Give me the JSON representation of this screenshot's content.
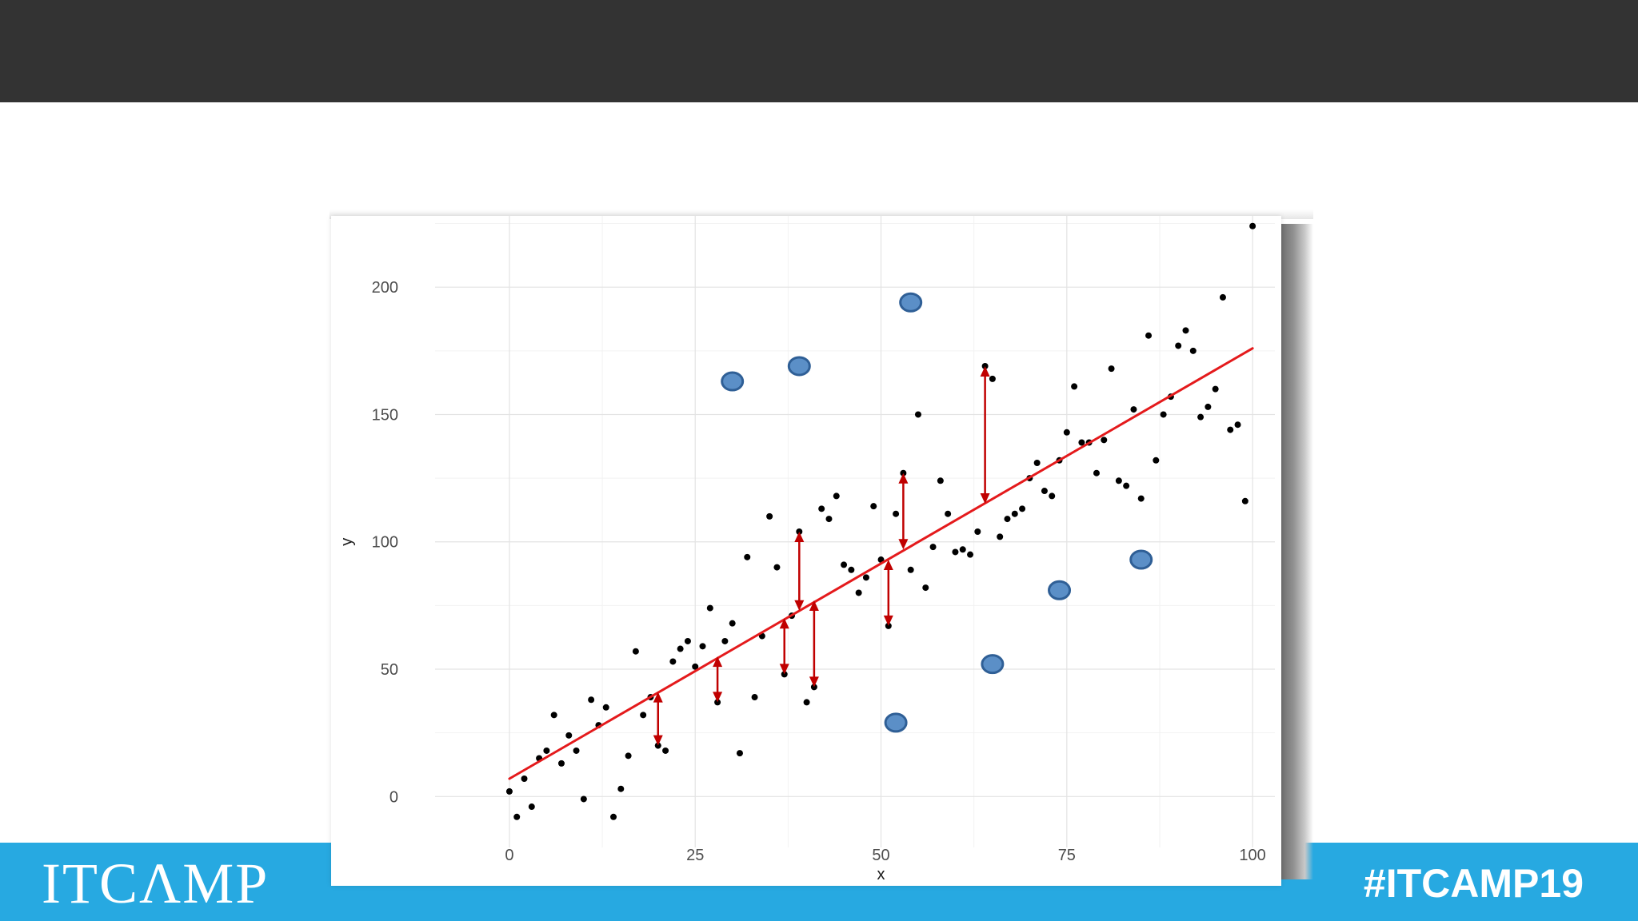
{
  "slide": {
    "footer": {
      "logo_text": "ITCΛMP",
      "hashtag": "#ITCAMP19"
    }
  },
  "chart_data": {
    "type": "scatter",
    "xlabel": "x",
    "ylabel": "y",
    "xlim": [
      -10,
      103
    ],
    "ylim": [
      -20,
      228
    ],
    "x_ticks": [
      0,
      25,
      50,
      75,
      100
    ],
    "y_ticks": [
      0,
      50,
      100,
      150,
      200
    ],
    "grid": true,
    "regression_line": {
      "x": [
        0,
        100
      ],
      "y": [
        7,
        176
      ],
      "color": "#e41a1c"
    },
    "points": [
      {
        "x": 0,
        "y": 2
      },
      {
        "x": 1,
        "y": -8
      },
      {
        "x": 2,
        "y": 7
      },
      {
        "x": 3,
        "y": -4
      },
      {
        "x": 4,
        "y": 15
      },
      {
        "x": 5,
        "y": 18
      },
      {
        "x": 6,
        "y": 32
      },
      {
        "x": 7,
        "y": 13
      },
      {
        "x": 8,
        "y": 24
      },
      {
        "x": 9,
        "y": 18
      },
      {
        "x": 10,
        "y": -1
      },
      {
        "x": 11,
        "y": 38
      },
      {
        "x": 12,
        "y": 28
      },
      {
        "x": 13,
        "y": 35
      },
      {
        "x": 14,
        "y": -8
      },
      {
        "x": 15,
        "y": 3
      },
      {
        "x": 16,
        "y": 16
      },
      {
        "x": 17,
        "y": 57
      },
      {
        "x": 18,
        "y": 32
      },
      {
        "x": 19,
        "y": 39
      },
      {
        "x": 20,
        "y": 20
      },
      {
        "x": 21,
        "y": 18
      },
      {
        "x": 22,
        "y": 53
      },
      {
        "x": 23,
        "y": 58
      },
      {
        "x": 24,
        "y": 61
      },
      {
        "x": 25,
        "y": 51
      },
      {
        "x": 26,
        "y": 59
      },
      {
        "x": 27,
        "y": 74
      },
      {
        "x": 28,
        "y": 37
      },
      {
        "x": 29,
        "y": 61
      },
      {
        "x": 30,
        "y": 68
      },
      {
        "x": 31,
        "y": 17
      },
      {
        "x": 32,
        "y": 94
      },
      {
        "x": 33,
        "y": 39
      },
      {
        "x": 34,
        "y": 63
      },
      {
        "x": 35,
        "y": 110
      },
      {
        "x": 36,
        "y": 90
      },
      {
        "x": 37,
        "y": 48
      },
      {
        "x": 38,
        "y": 71
      },
      {
        "x": 39,
        "y": 104
      },
      {
        "x": 40,
        "y": 37
      },
      {
        "x": 41,
        "y": 43
      },
      {
        "x": 42,
        "y": 113
      },
      {
        "x": 43,
        "y": 109
      },
      {
        "x": 44,
        "y": 118
      },
      {
        "x": 45,
        "y": 91
      },
      {
        "x": 46,
        "y": 89
      },
      {
        "x": 47,
        "y": 80
      },
      {
        "x": 48,
        "y": 86
      },
      {
        "x": 49,
        "y": 114
      },
      {
        "x": 50,
        "y": 93
      },
      {
        "x": 51,
        "y": 67
      },
      {
        "x": 52,
        "y": 111
      },
      {
        "x": 53,
        "y": 127
      },
      {
        "x": 54,
        "y": 89
      },
      {
        "x": 55,
        "y": 150
      },
      {
        "x": 56,
        "y": 82
      },
      {
        "x": 57,
        "y": 98
      },
      {
        "x": 58,
        "y": 124
      },
      {
        "x": 59,
        "y": 111
      },
      {
        "x": 60,
        "y": 96
      },
      {
        "x": 61,
        "y": 97
      },
      {
        "x": 62,
        "y": 95
      },
      {
        "x": 63,
        "y": 104
      },
      {
        "x": 64,
        "y": 169
      },
      {
        "x": 65,
        "y": 164
      },
      {
        "x": 66,
        "y": 102
      },
      {
        "x": 67,
        "y": 109
      },
      {
        "x": 68,
        "y": 111
      },
      {
        "x": 69,
        "y": 113
      },
      {
        "x": 70,
        "y": 125
      },
      {
        "x": 71,
        "y": 131
      },
      {
        "x": 72,
        "y": 120
      },
      {
        "x": 73,
        "y": 118
      },
      {
        "x": 74,
        "y": 132
      },
      {
        "x": 75,
        "y": 143
      },
      {
        "x": 76,
        "y": 161
      },
      {
        "x": 77,
        "y": 139
      },
      {
        "x": 78,
        "y": 139
      },
      {
        "x": 79,
        "y": 127
      },
      {
        "x": 80,
        "y": 140
      },
      {
        "x": 81,
        "y": 168
      },
      {
        "x": 82,
        "y": 124
      },
      {
        "x": 83,
        "y": 122
      },
      {
        "x": 84,
        "y": 152
      },
      {
        "x": 85,
        "y": 117
      },
      {
        "x": 86,
        "y": 181
      },
      {
        "x": 87,
        "y": 132
      },
      {
        "x": 88,
        "y": 150
      },
      {
        "x": 89,
        "y": 157
      },
      {
        "x": 90,
        "y": 177
      },
      {
        "x": 91,
        "y": 183
      },
      {
        "x": 92,
        "y": 175
      },
      {
        "x": 93,
        "y": 149
      },
      {
        "x": 94,
        "y": 153
      },
      {
        "x": 95,
        "y": 160
      },
      {
        "x": 96,
        "y": 196
      },
      {
        "x": 97,
        "y": 144
      },
      {
        "x": 98,
        "y": 146
      },
      {
        "x": 99,
        "y": 116
      },
      {
        "x": 100,
        "y": 224
      }
    ],
    "outliers": [
      {
        "x": 30,
        "y": 163
      },
      {
        "x": 39,
        "y": 169
      },
      {
        "x": 54,
        "y": 194
      },
      {
        "x": 52,
        "y": 29
      },
      {
        "x": 65,
        "y": 52
      },
      {
        "x": 74,
        "y": 81
      },
      {
        "x": 85,
        "y": 93
      }
    ],
    "residual_arrows": [
      {
        "x": 20,
        "y_from": 20,
        "y_to": 41
      },
      {
        "x": 28,
        "y_from": 37,
        "y_to": 55
      },
      {
        "x": 37,
        "y_from": 48,
        "y_to": 70
      },
      {
        "x": 39,
        "y_from": 104,
        "y_to": 73
      },
      {
        "x": 41,
        "y_from": 43,
        "y_to": 77
      },
      {
        "x": 51,
        "y_from": 67,
        "y_to": 93
      },
      {
        "x": 53,
        "y_from": 127,
        "y_to": 97
      },
      {
        "x": 64,
        "y_from": 169,
        "y_to": 115
      }
    ],
    "colors": {
      "points": "#000000",
      "line": "#e41a1c",
      "arrows": "#c00000",
      "outliers": "#5b8fc7",
      "outlier_stroke": "#2f5f96"
    }
  }
}
